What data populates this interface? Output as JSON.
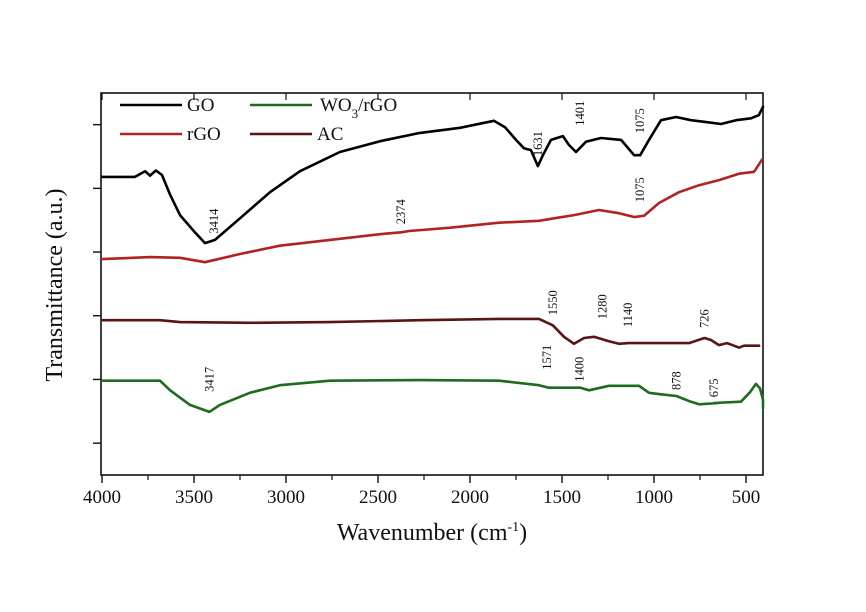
{
  "chart_data": {
    "type": "line",
    "title": "",
    "xlabel": "Wavenumber (cm",
    "xlabel_sup": "-1",
    "xlabel_close": ")",
    "ylabel": "Transmittance (a.u.)",
    "xlim": [
      4000,
      400
    ],
    "ylim": [
      0,
      6
    ],
    "x_ticks": [
      4000,
      3500,
      3000,
      2500,
      2000,
      1500,
      1000,
      500
    ],
    "x_tick_labels": [
      "4000",
      "3500",
      "3000",
      "2500",
      "2000",
      "1500",
      "1000",
      "500"
    ],
    "x_minor_ticks": [
      3750,
      3250,
      2750,
      2250,
      1750,
      1250,
      750
    ],
    "y_ticks": [
      0.5,
      1.5,
      2.5,
      3.5,
      4.5,
      5.5
    ],
    "y_tick_labels": [],
    "grid": false,
    "legend": {
      "placement": "top-left",
      "entries": [
        {
          "label": "GO",
          "series": 0
        },
        {
          "label": "WO",
          "sub": "3",
          "suffix": "/rGO",
          "series": 3
        },
        {
          "label": "rGO",
          "series": 1
        },
        {
          "label": "AC",
          "series": 2
        }
      ]
    },
    "series": [
      {
        "name": "GO",
        "color": "#000000",
        "points": [
          [
            4000,
            4.68
          ],
          [
            3821,
            4.68
          ],
          [
            3766,
            4.77
          ],
          [
            3739,
            4.7
          ],
          [
            3707,
            4.78
          ],
          [
            3674,
            4.71
          ],
          [
            3630,
            4.4
          ],
          [
            3576,
            4.08
          ],
          [
            3495,
            3.81
          ],
          [
            3440,
            3.64
          ],
          [
            3386,
            3.69
          ],
          [
            3250,
            4.03
          ],
          [
            3087,
            4.44
          ],
          [
            2924,
            4.77
          ],
          [
            2707,
            5.07
          ],
          [
            2489,
            5.24
          ],
          [
            2272,
            5.37
          ],
          [
            2054,
            5.45
          ],
          [
            1870,
            5.56
          ],
          [
            1810,
            5.46
          ],
          [
            1750,
            5.26
          ],
          [
            1707,
            5.13
          ],
          [
            1669,
            5.1
          ],
          [
            1631,
            4.85
          ],
          [
            1604,
            5.02
          ],
          [
            1560,
            5.26
          ],
          [
            1495,
            5.32
          ],
          [
            1462,
            5.18
          ],
          [
            1424,
            5.07
          ],
          [
            1370,
            5.23
          ],
          [
            1288,
            5.29
          ],
          [
            1179,
            5.26
          ],
          [
            1108,
            5.02
          ],
          [
            1075,
            5.02
          ],
          [
            1027,
            5.26
          ],
          [
            962,
            5.57
          ],
          [
            880,
            5.62
          ],
          [
            799,
            5.57
          ],
          [
            717,
            5.54
          ],
          [
            636,
            5.51
          ],
          [
            554,
            5.57
          ],
          [
            473,
            5.6
          ],
          [
            430,
            5.65
          ],
          [
            402,
            5.78
          ]
        ]
      },
      {
        "name": "rGO",
        "color": "#b22222",
        "points": [
          [
            4000,
            3.39
          ],
          [
            3739,
            3.42
          ],
          [
            3576,
            3.41
          ],
          [
            3440,
            3.34
          ],
          [
            3250,
            3.47
          ],
          [
            3033,
            3.6
          ],
          [
            2761,
            3.69
          ],
          [
            2489,
            3.78
          ],
          [
            2374,
            3.81
          ],
          [
            2331,
            3.83
          ],
          [
            2114,
            3.88
          ],
          [
            1842,
            3.96
          ],
          [
            1625,
            3.99
          ],
          [
            1543,
            4.03
          ],
          [
            1435,
            4.08
          ],
          [
            1299,
            4.16
          ],
          [
            1190,
            4.11
          ],
          [
            1108,
            4.05
          ],
          [
            1054,
            4.07
          ],
          [
            973,
            4.27
          ],
          [
            864,
            4.44
          ],
          [
            755,
            4.55
          ],
          [
            647,
            4.63
          ],
          [
            538,
            4.73
          ],
          [
            456,
            4.76
          ],
          [
            413,
            4.95
          ]
        ]
      },
      {
        "name": "AC",
        "color": "#5a1414",
        "points": [
          [
            4000,
            2.43
          ],
          [
            3739,
            2.43
          ],
          [
            3685,
            2.43
          ],
          [
            3576,
            2.4
          ],
          [
            3196,
            2.39
          ],
          [
            2761,
            2.4
          ],
          [
            2272,
            2.43
          ],
          [
            1842,
            2.45
          ],
          [
            1625,
            2.45
          ],
          [
            1550,
            2.35
          ],
          [
            1489,
            2.17
          ],
          [
            1435,
            2.06
          ],
          [
            1380,
            2.15
          ],
          [
            1326,
            2.17
          ],
          [
            1245,
            2.1
          ],
          [
            1190,
            2.06
          ],
          [
            1140,
            2.07
          ],
          [
            810,
            2.07
          ],
          [
            726,
            2.15
          ],
          [
            690,
            2.12
          ],
          [
            647,
            2.04
          ],
          [
            603,
            2.07
          ],
          [
            565,
            2.03
          ],
          [
            538,
            2.0
          ],
          [
            511,
            2.03
          ],
          [
            429,
            2.03
          ]
        ]
      },
      {
        "name": "WO3/rGO",
        "color": "#1e6b1e",
        "points": [
          [
            4000,
            1.48
          ],
          [
            3685,
            1.48
          ],
          [
            3630,
            1.33
          ],
          [
            3522,
            1.1
          ],
          [
            3417,
            0.99
          ],
          [
            3359,
            1.1
          ],
          [
            3196,
            1.29
          ],
          [
            3033,
            1.41
          ],
          [
            2761,
            1.48
          ],
          [
            2272,
            1.49
          ],
          [
            1842,
            1.48
          ],
          [
            1625,
            1.41
          ],
          [
            1571,
            1.37
          ],
          [
            1400,
            1.37
          ],
          [
            1353,
            1.33
          ],
          [
            1245,
            1.4
          ],
          [
            1163,
            1.4
          ],
          [
            1081,
            1.4
          ],
          [
            1027,
            1.29
          ],
          [
            945,
            1.26
          ],
          [
            878,
            1.24
          ],
          [
            810,
            1.16
          ],
          [
            755,
            1.11
          ],
          [
            647,
            1.13
          ],
          [
            675,
            1.13
          ],
          [
            527,
            1.15
          ],
          [
            478,
            1.3
          ],
          [
            446,
            1.43
          ],
          [
            424,
            1.36
          ],
          [
            402,
            1.18
          ],
          [
            375,
            1.05
          ]
        ]
      }
    ],
    "annotations": [
      {
        "text": "3414",
        "series": "GO"
      },
      {
        "text": "1631",
        "series": "GO"
      },
      {
        "text": "1401",
        "series": "GO"
      },
      {
        "text": "1075",
        "series": "GO"
      },
      {
        "text": "2374",
        "series": "rGO"
      },
      {
        "text": "1075",
        "series": "rGO"
      },
      {
        "text": "1550",
        "series": "AC"
      },
      {
        "text": "1280",
        "series": "AC"
      },
      {
        "text": "1140",
        "series": "AC"
      },
      {
        "text": "726",
        "series": "AC"
      },
      {
        "text": "3417",
        "series": "WO3/rGO"
      },
      {
        "text": "1571",
        "series": "WO3/rGO"
      },
      {
        "text": "1400",
        "series": "WO3/rGO"
      },
      {
        "text": "878",
        "series": "WO3/rGO"
      },
      {
        "text": "675",
        "series": "WO3/rGO"
      }
    ]
  }
}
